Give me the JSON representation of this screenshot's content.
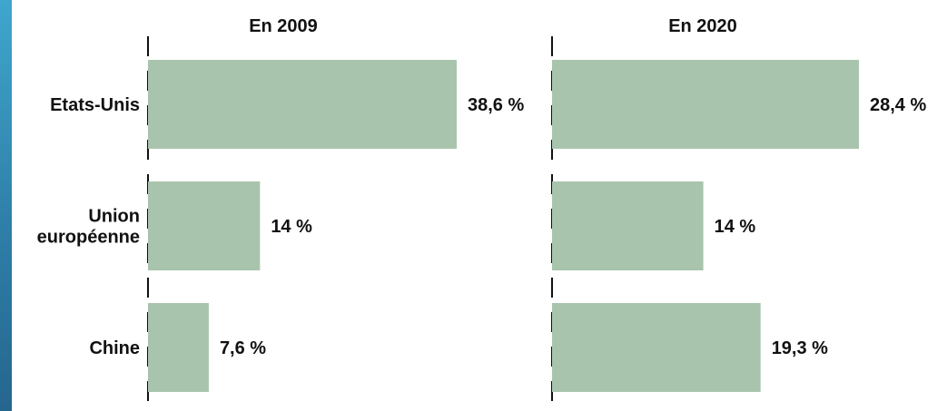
{
  "chart_data": [
    {
      "type": "bar",
      "orientation": "horizontal",
      "title": "En 2009",
      "categories": [
        [
          "Etats-Unis"
        ],
        [
          "Union",
          "européenne"
        ],
        [
          "Chine"
        ]
      ],
      "values": [
        38.6,
        14,
        7.6
      ],
      "value_labels": [
        "38,6 %",
        "14 %",
        "7,6 %"
      ],
      "xlim": [
        0,
        38.6
      ],
      "grid": false,
      "legend": "none",
      "bar_color": "#a9c4ad"
    },
    {
      "type": "bar",
      "orientation": "horizontal",
      "title": "En 2020",
      "categories": [
        [
          "Etats-Unis"
        ],
        [
          "Union",
          "européenne"
        ],
        [
          "Chine"
        ]
      ],
      "values": [
        28.4,
        14,
        19.3
      ],
      "value_labels": [
        "28,4 %",
        "14 %",
        "19,3 %"
      ],
      "xlim": [
        0,
        28.4
      ],
      "grid": false,
      "legend": "none",
      "bar_color": "#a9c4ad"
    }
  ],
  "colors": {
    "accent_strip": "#2e7fa8",
    "bar": "#a9c4ad",
    "axis": "#111111",
    "text": "#111111"
  }
}
